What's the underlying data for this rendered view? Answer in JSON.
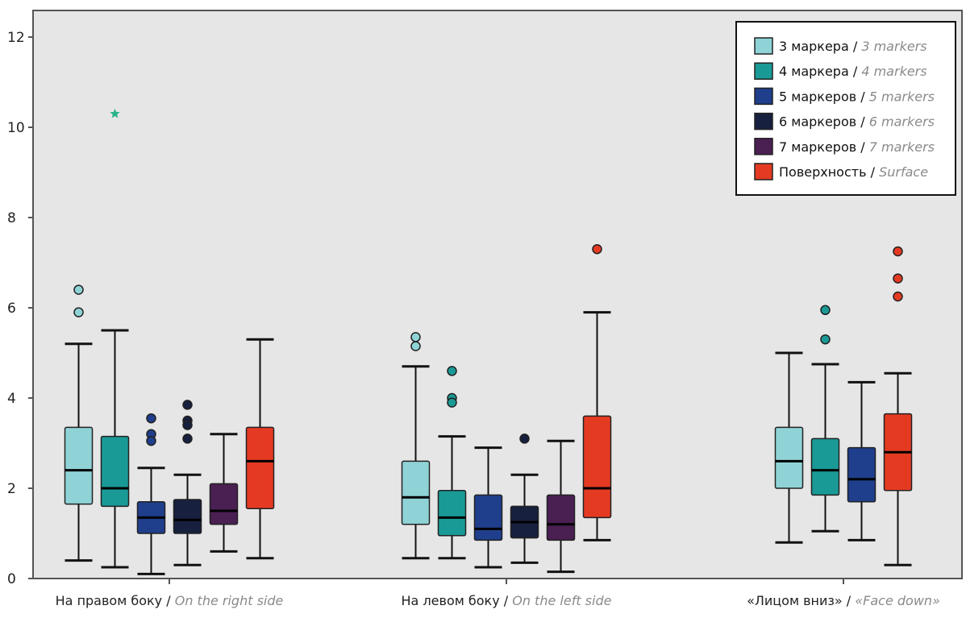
{
  "chart_data": {
    "type": "boxplot",
    "ylim": [
      0,
      12.5
    ],
    "yticks": [
      0,
      2,
      4,
      6,
      8,
      10,
      12
    ],
    "grid": false,
    "legend_position": "top-right",
    "categories": [
      {
        "ru": "На правом боку",
        "sep": " / ",
        "en": "On the right side"
      },
      {
        "ru": "На левом боку",
        "sep": " / ",
        "en": "On the left side"
      },
      {
        "ru": "«Лицом вниз»",
        "sep": " / ",
        "en": "«Face down»"
      }
    ],
    "series": [
      {
        "ru": "3 маркера",
        "en": "3 markers",
        "color": "#8fd3d6",
        "boxes": [
          {
            "category": 0,
            "whisker_low": 0.4,
            "q1": 1.65,
            "median": 2.4,
            "q3": 3.35,
            "whisker_high": 5.2,
            "outliers": [
              6.4,
              5.9
            ],
            "extremes": []
          },
          {
            "category": 1,
            "whisker_low": 0.45,
            "q1": 1.2,
            "median": 1.8,
            "q3": 2.6,
            "whisker_high": 4.7,
            "outliers": [
              5.35,
              5.15
            ],
            "extremes": []
          },
          {
            "category": 2,
            "whisker_low": 0.8,
            "q1": 2.0,
            "median": 2.6,
            "q3": 3.35,
            "whisker_high": 5.0,
            "outliers": [],
            "extremes": []
          }
        ]
      },
      {
        "ru": "4 маркера",
        "en": "4 markers",
        "color": "#1a9a96",
        "boxes": [
          {
            "category": 0,
            "whisker_low": 0.25,
            "q1": 1.6,
            "median": 2.0,
            "q3": 3.15,
            "whisker_high": 5.5,
            "outliers": [],
            "extremes": [
              10.3
            ]
          },
          {
            "category": 1,
            "whisker_low": 0.45,
            "q1": 0.95,
            "median": 1.35,
            "q3": 1.95,
            "whisker_high": 3.15,
            "outliers": [
              4.6,
              4.0,
              3.9
            ],
            "extremes": []
          },
          {
            "category": 2,
            "whisker_low": 1.05,
            "q1": 1.85,
            "median": 2.4,
            "q3": 3.1,
            "whisker_high": 4.75,
            "outliers": [
              5.95,
              5.3
            ],
            "extremes": []
          }
        ]
      },
      {
        "ru": "5 маркеров",
        "en": "5 markers",
        "color": "#1f3e8c",
        "boxes": [
          {
            "category": 0,
            "whisker_low": 0.1,
            "q1": 1.0,
            "median": 1.35,
            "q3": 1.7,
            "whisker_high": 2.45,
            "outliers": [
              3.55,
              3.2,
              3.05
            ],
            "extremes": []
          },
          {
            "category": 1,
            "whisker_low": 0.25,
            "q1": 0.85,
            "median": 1.1,
            "q3": 1.85,
            "whisker_high": 2.9,
            "outliers": [],
            "extremes": []
          },
          {
            "category": 2,
            "whisker_low": 0.85,
            "q1": 1.7,
            "median": 2.2,
            "q3": 2.9,
            "whisker_high": 4.35,
            "outliers": [],
            "extremes": []
          }
        ]
      },
      {
        "ru": "6 маркеров",
        "en": "6 markers",
        "color": "#17203e",
        "boxes": [
          {
            "category": 0,
            "whisker_low": 0.3,
            "q1": 1.0,
            "median": 1.3,
            "q3": 1.75,
            "whisker_high": 2.3,
            "outliers": [
              3.85,
              3.5,
              3.4,
              3.1
            ],
            "extremes": []
          },
          {
            "category": 1,
            "whisker_low": 0.35,
            "q1": 0.9,
            "median": 1.25,
            "q3": 1.6,
            "whisker_high": 2.3,
            "outliers": [
              3.1
            ],
            "extremes": []
          }
        ]
      },
      {
        "ru": "7 маркеров",
        "en": "7 markers",
        "color": "#4a1f52",
        "boxes": [
          {
            "category": 0,
            "whisker_low": 0.6,
            "q1": 1.2,
            "median": 1.5,
            "q3": 2.1,
            "whisker_high": 3.2,
            "outliers": [],
            "extremes": []
          },
          {
            "category": 1,
            "whisker_low": 0.15,
            "q1": 0.85,
            "median": 1.2,
            "q3": 1.85,
            "whisker_high": 3.05,
            "outliers": [],
            "extremes": []
          }
        ]
      },
      {
        "ru": "Поверхность",
        "en": "Surface",
        "color": "#e53a22",
        "boxes": [
          {
            "category": 0,
            "whisker_low": 0.45,
            "q1": 1.55,
            "median": 2.6,
            "q3": 3.35,
            "whisker_high": 5.3,
            "outliers": [],
            "extremes": []
          },
          {
            "category": 1,
            "whisker_low": 0.85,
            "q1": 1.35,
            "median": 2.0,
            "q3": 3.6,
            "whisker_high": 5.9,
            "outliers": [
              7.3
            ],
            "extremes": []
          },
          {
            "category": 2,
            "whisker_low": 0.3,
            "q1": 1.95,
            "median": 2.8,
            "q3": 3.65,
            "whisker_high": 4.55,
            "outliers": [
              7.25,
              6.65,
              6.25
            ],
            "extremes": []
          }
        ]
      }
    ]
  }
}
